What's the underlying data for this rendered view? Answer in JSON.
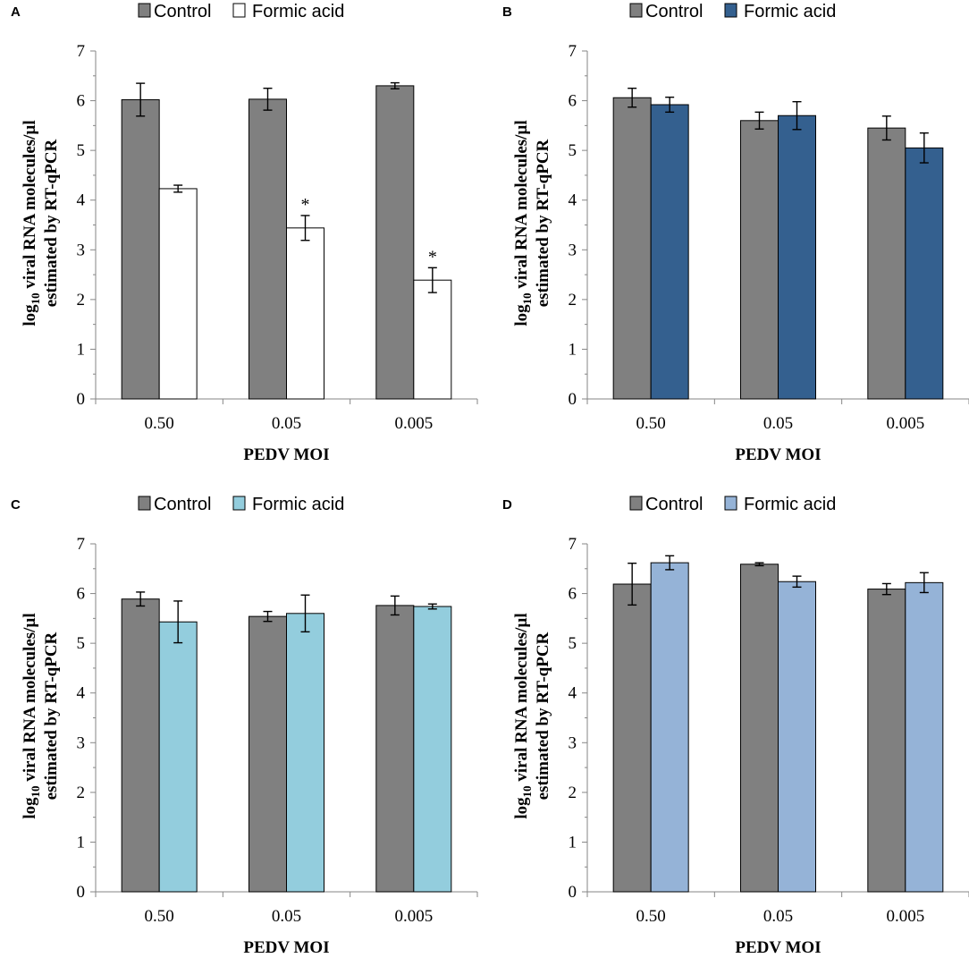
{
  "chart_data": [
    {
      "panel": "A",
      "type": "bar",
      "categories": [
        "0.50",
        "0.05",
        "0.005"
      ],
      "xlabel": "PEDV MOI",
      "ylabel_prefix": "log",
      "ylabel_sub": "10",
      "ylabel_rest": " viral RNA molecules/µl",
      "ylabel_line2": "estimated by RT-qPCR",
      "ylim": [
        0,
        7
      ],
      "yticks": [
        "0",
        "1",
        "2",
        "3",
        "4",
        "5",
        "6",
        "7"
      ],
      "series": [
        {
          "name": "Control",
          "color": "#808080",
          "values": [
            6.02,
            6.03,
            6.3
          ],
          "errors": [
            0.33,
            0.22,
            0.06
          ]
        },
        {
          "name": "Formic acid",
          "color": "#ffffff",
          "values": [
            4.23,
            3.44,
            2.39
          ],
          "errors": [
            0.07,
            0.25,
            0.25
          ]
        }
      ],
      "annotations": [
        {
          "series": 1,
          "category": 1,
          "text": "*"
        },
        {
          "series": 1,
          "category": 2,
          "text": "*"
        }
      ]
    },
    {
      "panel": "B",
      "type": "bar",
      "categories": [
        "0.50",
        "0.05",
        "0.005"
      ],
      "xlabel": "PEDV MOI",
      "ylabel_prefix": "log",
      "ylabel_sub": "10",
      "ylabel_rest": " viral RNA molecules/µl",
      "ylabel_line2": "estimated by RT-qPCR",
      "ylim": [
        0,
        7
      ],
      "yticks": [
        "0",
        "1",
        "2",
        "3",
        "4",
        "5",
        "6",
        "7"
      ],
      "series": [
        {
          "name": "Control",
          "color": "#808080",
          "values": [
            6.06,
            5.6,
            5.45
          ],
          "errors": [
            0.19,
            0.17,
            0.24
          ]
        },
        {
          "name": "Formic acid",
          "color": "#34608f",
          "values": [
            5.92,
            5.7,
            5.05
          ],
          "errors": [
            0.15,
            0.28,
            0.3
          ]
        }
      ],
      "annotations": []
    },
    {
      "panel": "C",
      "type": "bar",
      "categories": [
        "0.50",
        "0.05",
        "0.005"
      ],
      "xlabel": "PEDV MOI",
      "ylabel_prefix": "log",
      "ylabel_sub": "10",
      "ylabel_rest": " viral RNA molecules/µl",
      "ylabel_line2": "estimated by RT-qPCR",
      "ylim": [
        0,
        7
      ],
      "yticks": [
        "0",
        "1",
        "2",
        "3",
        "4",
        "5",
        "6",
        "7"
      ],
      "series": [
        {
          "name": "Control",
          "color": "#808080",
          "values": [
            5.89,
            5.54,
            5.76
          ],
          "errors": [
            0.14,
            0.1,
            0.19
          ]
        },
        {
          "name": "Formic acid",
          "color": "#93cddd",
          "values": [
            5.43,
            5.6,
            5.74
          ],
          "errors": [
            0.42,
            0.37,
            0.05
          ]
        }
      ],
      "annotations": []
    },
    {
      "panel": "D",
      "type": "bar",
      "categories": [
        "0.50",
        "0.05",
        "0.005"
      ],
      "xlabel": "PEDV MOI",
      "ylabel_prefix": "log",
      "ylabel_sub": "10",
      "ylabel_rest": " viral RNA molecules/µl",
      "ylabel_line2": "estimated by RT-qPCR",
      "ylim": [
        0,
        7
      ],
      "yticks": [
        "0",
        "1",
        "2",
        "3",
        "4",
        "5",
        "6",
        "7"
      ],
      "series": [
        {
          "name": "Control",
          "color": "#808080",
          "values": [
            6.19,
            6.59,
            6.09
          ],
          "errors": [
            0.42,
            0.03,
            0.11
          ]
        },
        {
          "name": "Formic acid",
          "color": "#95b3d7",
          "values": [
            6.62,
            6.24,
            6.22
          ],
          "errors": [
            0.14,
            0.11,
            0.2
          ]
        }
      ],
      "annotations": []
    }
  ]
}
